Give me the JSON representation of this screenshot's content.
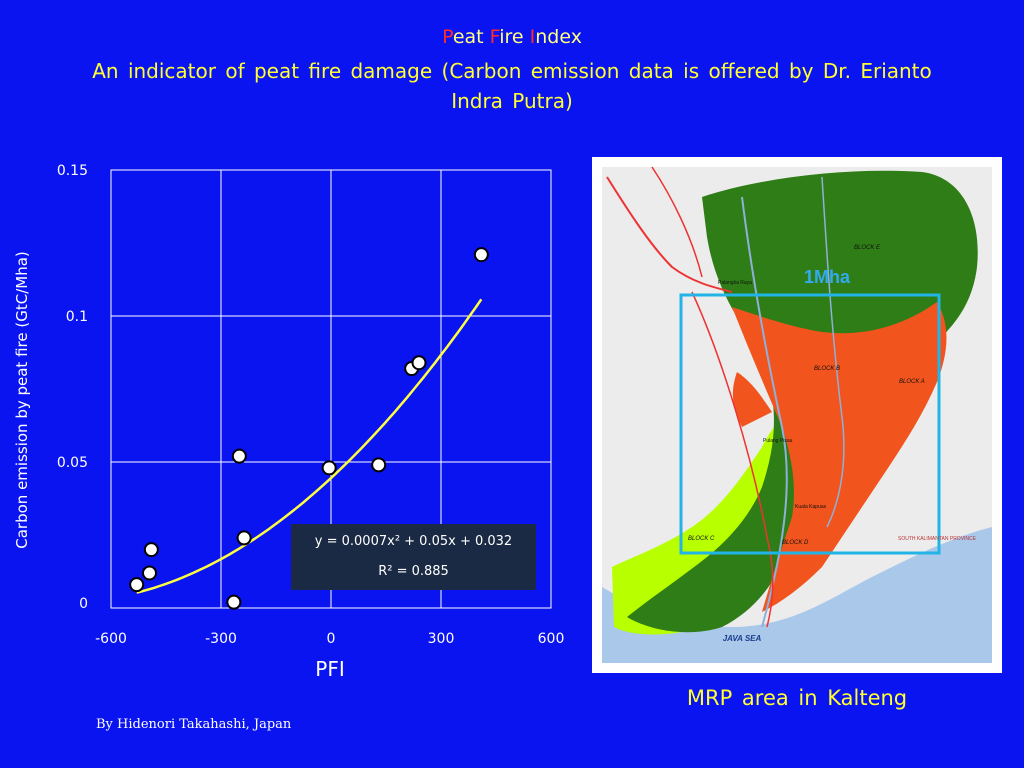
{
  "header": {
    "title_parts": [
      {
        "text": "P",
        "color": "#ff2a2a"
      },
      {
        "text": "eat ",
        "color": "#ffff80"
      },
      {
        "text": "F",
        "color": "#ff2a2a"
      },
      {
        "text": "ire ",
        "color": "#ffff80"
      },
      {
        "text": "I",
        "color": "#ff2a2a"
      },
      {
        "text": "ndex",
        "color": "#ffff80"
      }
    ],
    "subtitle": "An indicator of peat fire damage  (Carbon emission data is offered by Dr. Erianto Indra Putra)"
  },
  "chart_data": {
    "type": "scatter",
    "xlabel": "PFI",
    "ylabel": "Carbon emission by peat fire (GtC/Mha)",
    "xlim": [
      -600,
      600
    ],
    "ylim": [
      0,
      0.15
    ],
    "xticks": [
      "-600",
      "-300",
      "0",
      "300",
      "600"
    ],
    "yticks": [
      "0",
      "0.05",
      "0.1",
      "0.15"
    ],
    "grid": true,
    "points": [
      {
        "x": -530,
        "y": 0.008
      },
      {
        "x": -495,
        "y": 0.012
      },
      {
        "x": -490,
        "y": 0.02
      },
      {
        "x": -265,
        "y": 0.002
      },
      {
        "x": -250,
        "y": 0.052
      },
      {
        "x": -237,
        "y": 0.024
      },
      {
        "x": -5,
        "y": 0.048
      },
      {
        "x": 130,
        "y": 0.049
      },
      {
        "x": 220,
        "y": 0.082
      },
      {
        "x": 240,
        "y": 0.084
      },
      {
        "x": 410,
        "y": 0.121
      }
    ],
    "trendline": {
      "equation": "y = 0.0007x² + 0.05x + 0.032",
      "r2": "R² = 0.885",
      "x_range": [
        -530,
        410
      ]
    },
    "colors": {
      "grid": "#ffffff",
      "points_fill": "#ffffff",
      "points_stroke": "#000000",
      "trend": "#ffff40"
    }
  },
  "map": {
    "label_area": "1Mha",
    "blocks": [
      "BLOCK E",
      "BLOCK B",
      "BLOCK A",
      "BLOCK C",
      "BLOCK D"
    ],
    "sea_label": "JAVA SEA",
    "province_label": "SOUTH KALIMANTAN PROVINCE",
    "town_labels": [
      "Pulang Pisau",
      "Kuala Kapuas",
      "Palangka Raya"
    ],
    "caption": "MRP area in Kalteng"
  },
  "footer": {
    "credit": "By Hidenori Takahashi, Japan"
  }
}
